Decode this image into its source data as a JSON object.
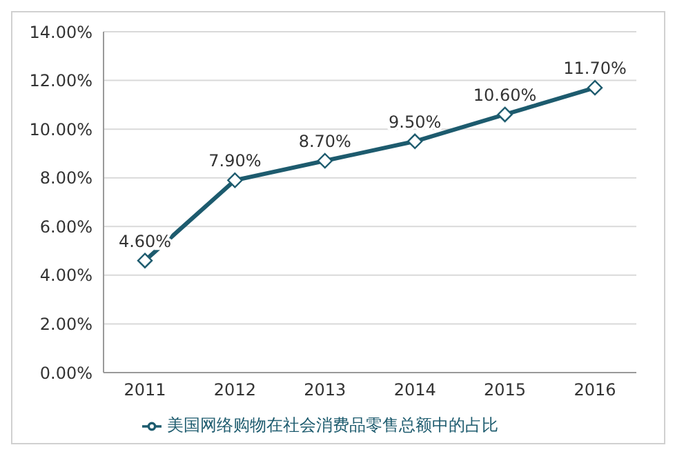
{
  "chart_data": {
    "type": "line",
    "categories": [
      "2011",
      "2012",
      "2013",
      "2014",
      "2015",
      "2016"
    ],
    "series": [
      {
        "name": "美国网络购物在社会消费品零售总额中的占比",
        "color": "#1d5b6e",
        "values": [
          4.6,
          7.9,
          8.7,
          9.5,
          10.6,
          11.7
        ],
        "value_labels": [
          "4.60%",
          "7.90%",
          "8.70%",
          "9.50%",
          "10.60%",
          "11.70%"
        ]
      }
    ],
    "ylim": [
      0,
      14
    ],
    "yticks": [
      {
        "value": 0,
        "label": "0.00%"
      },
      {
        "value": 2,
        "label": "2.00%"
      },
      {
        "value": 4,
        "label": "4.00%"
      },
      {
        "value": 6,
        "label": "6.00%"
      },
      {
        "value": 8,
        "label": "8.00%"
      },
      {
        "value": 10,
        "label": "10.00%"
      },
      {
        "value": 12,
        "label": "12.00%"
      },
      {
        "value": 14,
        "label": "14.00%"
      }
    ],
    "grid": "y",
    "legend": "bottom",
    "marker": "diamond",
    "line_style": "solid"
  }
}
